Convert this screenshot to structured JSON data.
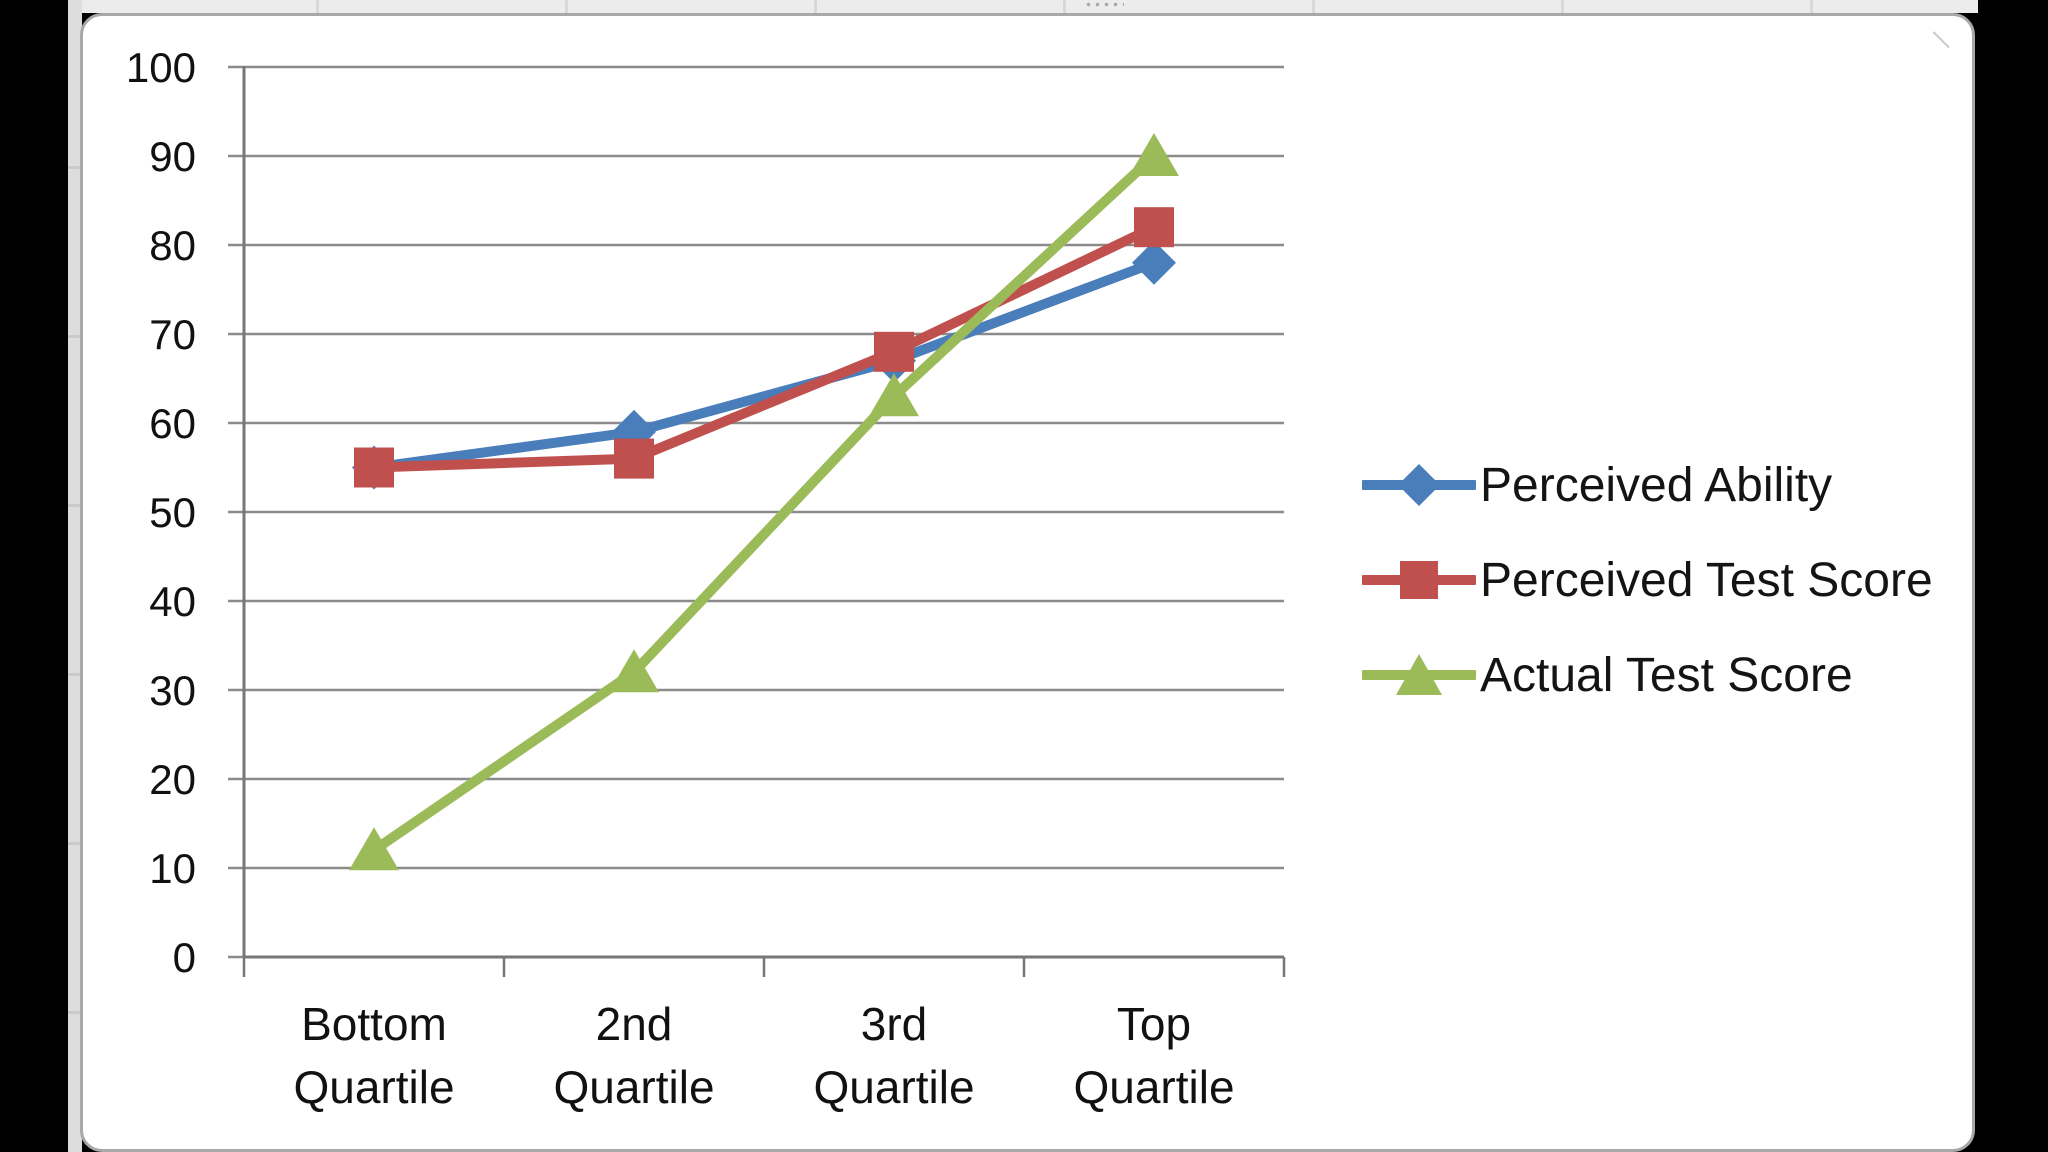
{
  "chart_data": {
    "type": "line",
    "title": "",
    "categories": [
      "Bottom Quartile",
      "2nd Quartile",
      "3rd Quartile",
      "Top Quartile"
    ],
    "categories_lines": [
      [
        "Bottom",
        "Quartile"
      ],
      [
        "2nd",
        "Quartile"
      ],
      [
        "3rd",
        "Quartile"
      ],
      [
        "Top",
        "Quartile"
      ]
    ],
    "series": [
      {
        "name": "Perceived Ability",
        "color": "#4a7eba",
        "marker": "diamond",
        "values": [
          55,
          59,
          67,
          78
        ]
      },
      {
        "name": "Perceived Test Score",
        "color": "#c0504d",
        "marker": "square",
        "values": [
          55,
          56,
          68,
          82
        ]
      },
      {
        "name": "Actual Test Score",
        "color": "#9bbb59",
        "marker": "triangle",
        "values": [
          12,
          32,
          63,
          90
        ]
      }
    ],
    "xlabel": "",
    "ylabel": "",
    "ylim": [
      0,
      100
    ],
    "ytick_step": 10,
    "y_tick_labels": [
      "0",
      "10",
      "20",
      "30",
      "40",
      "50",
      "60",
      "70",
      "80",
      "90",
      "100"
    ],
    "grid": "horizontal-only",
    "legend_position": "right-middle"
  },
  "colors": {
    "gridline": "#8b8b8b",
    "axis": "#777777",
    "tick_text": "#111111",
    "chart_background": "#ffffff",
    "chart_border": "#a8a8a8",
    "page_background": "#000000"
  }
}
